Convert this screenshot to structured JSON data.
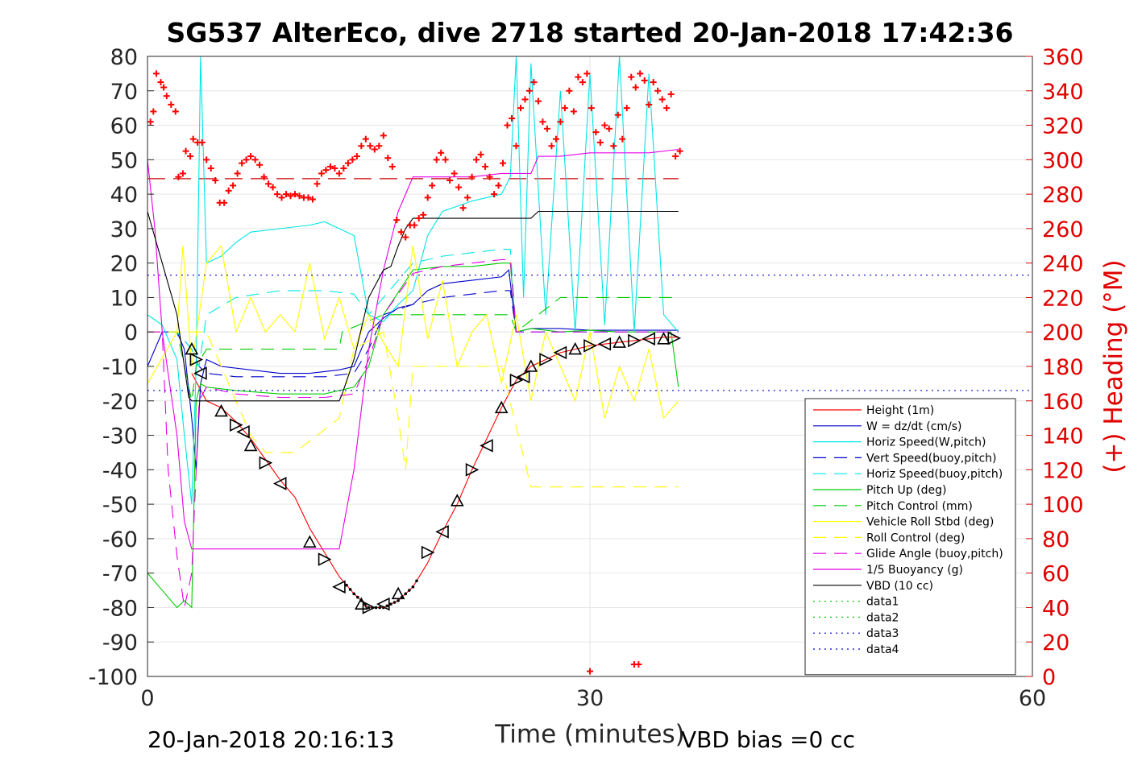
{
  "chart_data": {
    "type": "line",
    "title": "SG537 AlterEco, dive 2718 started 20-Jan-2018 17:42:36",
    "xlabel": "Time (minutes)",
    "ylabel": "",
    "y2label": "(+) Heading (°M)",
    "xlim": [
      0,
      60
    ],
    "ylim": [
      -100,
      80
    ],
    "y2lim": [
      0,
      360
    ],
    "x_ticks": [
      "0",
      "30",
      "60"
    ],
    "y_ticks": [
      "80",
      "70",
      "60",
      "50",
      "40",
      "30",
      "20",
      "10",
      "0",
      "-10",
      "-20",
      "-30",
      "-40",
      "-50",
      "-60",
      "-70",
      "-80",
      "-90",
      "-100"
    ],
    "y2_ticks": [
      "360",
      "340",
      "320",
      "300",
      "280",
      "260",
      "240",
      "220",
      "200",
      "180",
      "160",
      "140",
      "120",
      "100",
      "80",
      "60",
      "40",
      "20",
      "0"
    ],
    "grid": true,
    "legend_position": "bottom-right",
    "footer_left": "20-Jan-2018 20:16:13",
    "footer_right": "VBD bias =0 cc",
    "series": [
      {
        "name": "Height (1m)",
        "color": "#ff0000",
        "dash": "solid",
        "x": [
          3,
          4,
          5,
          6,
          7,
          8,
          9,
          10,
          11,
          12,
          13,
          14,
          15,
          16,
          17,
          18,
          19,
          20,
          21,
          22,
          23,
          24,
          25,
          26,
          27,
          28,
          29,
          30,
          31,
          32,
          33,
          34,
          35,
          36
        ],
        "y": [
          -12,
          -20,
          -22,
          -26,
          -31,
          -37,
          -43,
          -48,
          -57,
          -64,
          -71,
          -76,
          -80,
          -80,
          -78,
          -74,
          -67,
          -58,
          -50,
          -40,
          -31,
          -22,
          -14,
          -10,
          -8,
          -6,
          -5,
          -4,
          -3.5,
          -3,
          -2.5,
          -2,
          -1.5,
          -1.5
        ]
      },
      {
        "name": "W = dz/dt (cm/s)",
        "color": "#0000cc",
        "dash": "solid",
        "x": [
          0,
          1,
          2,
          2.5,
          3,
          3.3,
          3.6,
          4,
          5,
          7,
          9,
          11,
          13,
          14,
          15,
          16,
          17,
          18,
          19,
          20,
          22,
          24,
          24.5,
          25,
          26,
          28,
          30,
          32,
          34,
          36
        ],
        "y": [
          -10,
          0,
          0,
          -5,
          -25,
          -40,
          -15,
          -8,
          -10,
          -11,
          -12,
          -12,
          -11,
          -10,
          0,
          4,
          7,
          8,
          12,
          14,
          15,
          16,
          18,
          0,
          1,
          1,
          0.5,
          0.5,
          0.5,
          0.5
        ]
      },
      {
        "name": "Horiz Speed(W,pitch)",
        "color": "#00e5e5",
        "dash": "solid",
        "x": [
          0,
          1,
          2,
          2.5,
          3,
          3.3,
          3.6,
          4,
          5,
          6,
          7,
          9,
          11,
          12,
          13,
          14,
          15,
          16,
          17,
          18,
          19,
          20,
          22,
          24,
          24.6,
          25,
          25.5,
          26,
          27,
          28,
          29,
          30,
          31,
          32,
          33,
          34,
          35,
          36
        ],
        "y": [
          5,
          2,
          -8,
          -30,
          -50,
          -10,
          80,
          20,
          22,
          26,
          29,
          30,
          31,
          32,
          30,
          28,
          5,
          3,
          8,
          12,
          28,
          35,
          38,
          40,
          45,
          80,
          10,
          78,
          5,
          70,
          0,
          75,
          2,
          80,
          0,
          75,
          5,
          0
        ]
      },
      {
        "name": "Vert Speed(buoy,pitch)",
        "color": "#0000cc",
        "dash": "dashed",
        "x": [
          0,
          2,
          3,
          3.5,
          4,
          6,
          9,
          12,
          14,
          15,
          16,
          18,
          20,
          22,
          24,
          24.6,
          25,
          30,
          36
        ],
        "y": [
          0,
          0,
          -5,
          -10,
          -12,
          -13,
          -13,
          -13,
          -12,
          -5,
          5,
          8,
          10,
          11,
          12,
          12,
          0,
          0,
          0
        ]
      },
      {
        "name": "Horiz Speed(buoy,pitch)",
        "color": "#00e5e5",
        "dash": "dashed",
        "x": [
          0,
          2,
          3,
          3.5,
          4,
          6,
          9,
          12,
          14,
          15,
          16,
          18,
          20,
          22,
          24,
          24.6,
          25,
          30,
          36
        ],
        "y": [
          0,
          0,
          -5,
          -10,
          5,
          10,
          12,
          12,
          11,
          5,
          10,
          20,
          22,
          23,
          24,
          24,
          0,
          0,
          0
        ]
      },
      {
        "name": "Pitch Up (deg)",
        "color": "#00cc00",
        "dash": "solid",
        "x": [
          0,
          1,
          2,
          2.5,
          3,
          3.3,
          3.6,
          4,
          6,
          9,
          12,
          13,
          14,
          15,
          16,
          18,
          20,
          22,
          24,
          24.6,
          25,
          26,
          28,
          30,
          32,
          34,
          35.5,
          36
        ],
        "y": [
          -70,
          -75,
          -80,
          -78,
          -80,
          -20,
          -15,
          -16,
          -17,
          -18,
          -18,
          -17,
          -16,
          -10,
          5,
          18,
          19,
          19,
          20,
          20,
          0,
          1,
          0,
          0.5,
          0,
          0,
          0,
          -16
        ]
      },
      {
        "name": "Pitch Control (mm)",
        "color": "#00cc00",
        "dash": "dashed",
        "x": [
          0,
          2,
          3,
          3.3,
          4,
          10,
          13,
          13.2,
          16,
          18,
          24.6,
          25,
          28,
          30,
          32,
          34,
          36
        ],
        "y": [
          0,
          0,
          -20,
          -10,
          -5,
          -5,
          -5,
          0,
          5,
          5,
          5,
          0,
          10,
          10,
          10,
          10,
          10
        ]
      },
      {
        "name": "Vehicle Roll Stbd (deg)",
        "color": "#ffff00",
        "dash": "solid",
        "x": [
          0,
          2,
          2.4,
          3,
          3.5,
          4,
          5,
          6,
          7,
          8,
          9,
          10,
          11,
          12,
          13,
          14,
          15,
          16,
          17,
          18,
          19,
          20,
          21,
          22,
          23,
          24,
          25,
          26,
          27,
          28,
          29,
          30,
          31,
          32,
          33,
          34,
          35,
          36
        ],
        "y": [
          -15,
          0,
          25,
          -10,
          5,
          20,
          25,
          0,
          10,
          0,
          5,
          0,
          20,
          -2,
          10,
          -5,
          5,
          -3,
          -10,
          25,
          -2,
          15,
          -10,
          0,
          5,
          -15,
          5,
          -20,
          0,
          -10,
          -20,
          0,
          -25,
          -10,
          -20,
          -5,
          -25,
          -20
        ]
      },
      {
        "name": "Roll Control (deg)",
        "color": "#ffff00",
        "dash": "dashed",
        "x": [
          0,
          4,
          5,
          6,
          7,
          8,
          10,
          13,
          14,
          16,
          17,
          17.5,
          18,
          20,
          22,
          24,
          26,
          30,
          36
        ],
        "y": [
          0,
          0,
          -10,
          -20,
          -30,
          -35,
          -35,
          -25,
          -5,
          0,
          -25,
          -40,
          -10,
          -10,
          -10,
          -10,
          -45,
          -45,
          -45
        ]
      },
      {
        "name": "Glide Angle (buoy,pitch)",
        "color": "#e600e6",
        "dash": "dashed",
        "x": [
          0,
          1,
          1.4,
          2,
          2.5,
          3,
          3.5,
          4,
          6,
          9,
          12,
          14,
          15,
          16,
          18,
          20,
          22,
          24,
          24.6,
          25,
          30,
          36
        ],
        "y": [
          0,
          0,
          -40,
          -65,
          -80,
          -70,
          -20,
          -16,
          -18,
          -19,
          -19,
          -18,
          -8,
          5,
          17,
          19,
          20,
          21,
          21,
          0,
          0,
          0
        ]
      },
      {
        "name": "1/5 Buoyancy (g)",
        "color": "#e600e6",
        "dash": "solid",
        "x": [
          0,
          0.5,
          1,
          2,
          2.5,
          3,
          4,
          6,
          9,
          12,
          13,
          14,
          15,
          16,
          17,
          18,
          19,
          20,
          22,
          24,
          25,
          26,
          26.5,
          28,
          30,
          32,
          34,
          36
        ],
        "y": [
          50,
          30,
          0,
          -30,
          -55,
          -63,
          -63,
          -63,
          -63,
          -63,
          -63,
          -40,
          -5,
          18,
          35,
          45,
          45,
          45,
          45,
          46,
          46,
          46,
          51,
          51,
          52,
          52,
          52,
          53
        ]
      },
      {
        "name": "VBD (10 cc)",
        "color": "#000000",
        "dash": "solid",
        "x": [
          0,
          1,
          2,
          2.5,
          2.8,
          3,
          4,
          6,
          9,
          12,
          13,
          13.2,
          14,
          15,
          16,
          16.5,
          17,
          17.5,
          18,
          19,
          20,
          22,
          24,
          25,
          26,
          26.5,
          28,
          30,
          32,
          34,
          36
        ],
        "y": [
          35,
          20,
          5,
          -10,
          -19,
          -20,
          -20,
          -20,
          -20,
          -20,
          -20,
          -18,
          -8,
          10,
          18,
          19,
          25,
          30,
          33,
          33,
          33,
          33,
          33,
          33,
          33,
          35,
          35,
          35,
          35,
          35,
          35
        ]
      },
      {
        "name": "data1",
        "color": "#00cc00",
        "dash": "dotted",
        "x": [],
        "y": []
      },
      {
        "name": "data2",
        "color": "#00cc00",
        "dash": "dotted",
        "x": [],
        "y": []
      },
      {
        "name": "data3",
        "color": "#0000cc",
        "dash": "dotted",
        "x": [
          0,
          60
        ],
        "y": [
          16.5,
          16.5
        ]
      },
      {
        "name": "data4",
        "color": "#0000cc",
        "dash": "dotted",
        "x": [
          0,
          60
        ],
        "y": [
          -17,
          -17
        ]
      }
    ],
    "reference_lines": [
      {
        "color": "#cc0000",
        "dash": "long-dash",
        "x": [
          0,
          36
        ],
        "y": [
          44.5,
          44.5
        ]
      }
    ],
    "triangle_markers": {
      "color": "#000000",
      "x": [
        3,
        3.3,
        3.6,
        5,
        6,
        6.5,
        7,
        8,
        9,
        11,
        12,
        13,
        14.5,
        15,
        16,
        17,
        19,
        20,
        21,
        22,
        23,
        24,
        25,
        25.5,
        26,
        27,
        28,
        29,
        30,
        31,
        32,
        33,
        34,
        35,
        35.7
      ],
      "y": [
        -5,
        -8,
        -12,
        -23,
        -27,
        -29,
        -33,
        -38,
        -44,
        -61,
        -66,
        -74,
        -79,
        -80,
        -79,
        -76,
        -64,
        -58,
        -49,
        -40,
        -33,
        -22,
        -14,
        -13,
        -10,
        -8,
        -6,
        -5,
        -4,
        -3.5,
        -3,
        -2.5,
        -2,
        -2,
        -1.8
      ]
    },
    "heading": {
      "name": "(+) Heading (°M)",
      "color": "#ff0000",
      "x": [
        0.2,
        0.4,
        0.6,
        0.9,
        1.1,
        1.3,
        1.6,
        1.9,
        2.1,
        2.4,
        2.6,
        2.9,
        3.1,
        3.4,
        3.7,
        4,
        4.3,
        4.6,
        4.9,
        5.2,
        5.5,
        5.8,
        6.1,
        6.4,
        6.7,
        7,
        7.3,
        7.6,
        7.9,
        8.2,
        8.5,
        8.8,
        9.1,
        9.4,
        9.7,
        10,
        10.3,
        10.6,
        10.9,
        11.2,
        11.5,
        11.8,
        12.1,
        12.4,
        12.7,
        13,
        13.3,
        13.6,
        13.9,
        14.2,
        14.5,
        14.8,
        15.1,
        15.4,
        15.7,
        16,
        16.3,
        16.6,
        16.9,
        17.2,
        17.5,
        17.8,
        18.1,
        18.4,
        18.7,
        19,
        19.3,
        19.6,
        19.9,
        20.2,
        20.5,
        20.8,
        21.1,
        21.4,
        21.7,
        22,
        22.3,
        22.6,
        22.9,
        23.2,
        23.5,
        23.8,
        24.1,
        24.4,
        24.7,
        25,
        25.3,
        25.6,
        25.9,
        26.2,
        26.5,
        26.8,
        27.1,
        27.4,
        27.7,
        28,
        28.3,
        28.6,
        28.9,
        29.2,
        29.5,
        29.8,
        30.1,
        30.4,
        30.7,
        31,
        31.3,
        31.6,
        31.9,
        32.2,
        32.5,
        32.8,
        33.1,
        33.4,
        33.7,
        34,
        34.3,
        34.6,
        34.9,
        35.2,
        35.5,
        35.8,
        36.1
      ],
      "y": [
        322,
        328,
        350,
        345,
        342,
        337,
        332,
        328,
        290,
        292,
        305,
        302,
        312,
        310,
        310,
        300,
        295,
        288,
        275,
        275,
        282,
        285,
        292,
        298,
        300,
        302,
        300,
        297,
        290,
        286,
        284,
        280,
        278,
        280,
        279,
        280,
        279,
        278,
        278,
        277,
        286,
        292,
        294,
        296,
        295,
        292,
        295,
        298,
        300,
        302,
        308,
        312,
        308,
        306,
        308,
        314,
        301,
        296,
        265,
        258,
        255,
        262,
        262,
        266,
        268,
        278,
        285,
        300,
        304,
        300,
        288,
        292,
        284,
        272,
        278,
        290,
        300,
        303,
        296,
        290,
        280,
        285,
        298,
        320,
        324,
        308,
        330,
        335,
        340,
        345,
        334,
        322,
        318,
        308,
        312,
        322,
        330,
        340,
        328,
        348,
        345,
        350,
        330,
        316,
        310,
        320,
        318,
        308,
        326,
        312,
        330,
        348,
        342,
        350,
        346,
        332,
        345,
        340,
        335,
        330,
        338,
        302,
        305
      ]
    },
    "heading_outliers": {
      "x": [
        30,
        33,
        33.3
      ],
      "y": [
        3,
        7,
        7
      ]
    }
  }
}
